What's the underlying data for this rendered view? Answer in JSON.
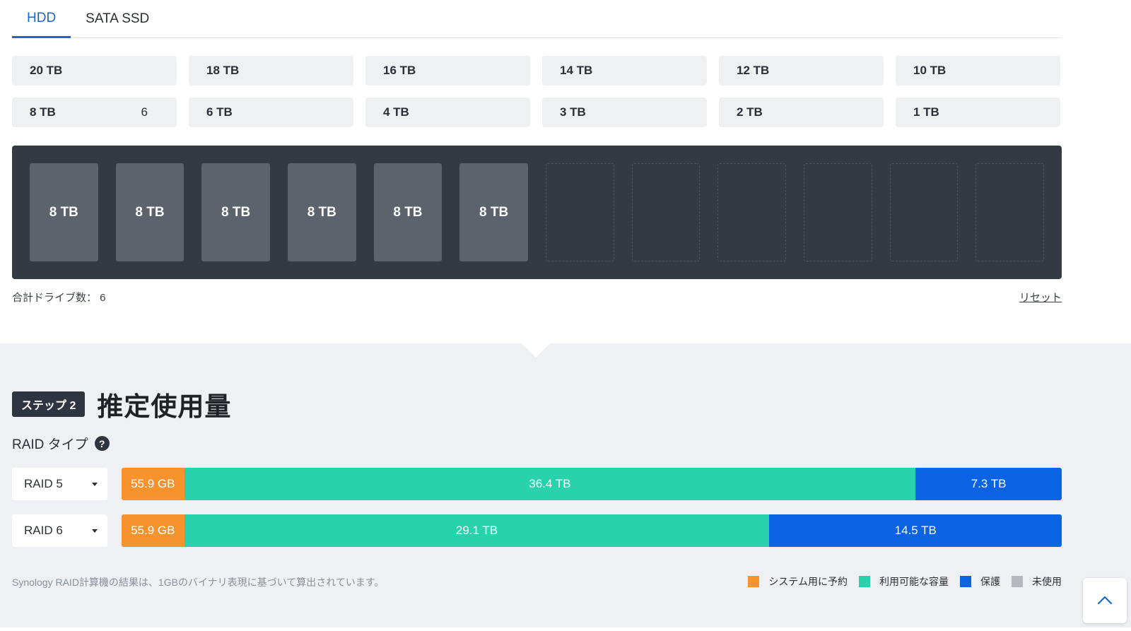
{
  "tabs": [
    {
      "label": "HDD",
      "active": true
    },
    {
      "label": "SATA SSD",
      "active": false
    }
  ],
  "sizes": [
    {
      "label": "20 TB",
      "count": ""
    },
    {
      "label": "18 TB",
      "count": ""
    },
    {
      "label": "16 TB",
      "count": ""
    },
    {
      "label": "14 TB",
      "count": ""
    },
    {
      "label": "12 TB",
      "count": ""
    },
    {
      "label": "10 TB",
      "count": ""
    },
    {
      "label": "8 TB",
      "count": "6"
    },
    {
      "label": "6 TB",
      "count": ""
    },
    {
      "label": "4 TB",
      "count": ""
    },
    {
      "label": "3 TB",
      "count": ""
    },
    {
      "label": "2 TB",
      "count": ""
    },
    {
      "label": "1 TB",
      "count": ""
    }
  ],
  "bay": {
    "slots": [
      "8 TB",
      "8 TB",
      "8 TB",
      "8 TB",
      "8 TB",
      "8 TB",
      "",
      "",
      "",
      "",
      "",
      ""
    ]
  },
  "total_drives": "合計ドライブ数：  6",
  "reset_label": "リセット",
  "step": {
    "badge": "ステップ 2",
    "title": "推定使用量"
  },
  "raid_type_label": "RAID タイプ",
  "help_icon": "?",
  "raid_rows": [
    {
      "select": "RAID 5",
      "segments": [
        {
          "kind": "reserved",
          "label": "55.9 GB",
          "fraction": 0.0666
        },
        {
          "kind": "available",
          "label": "36.4 TB",
          "fraction": 0.7779
        },
        {
          "kind": "protect",
          "label": "7.3 TB",
          "fraction": 0.1555
        }
      ]
    },
    {
      "select": "RAID 6",
      "segments": [
        {
          "kind": "reserved",
          "label": "55.9 GB",
          "fraction": 0.0666
        },
        {
          "kind": "available",
          "label": "29.1 TB",
          "fraction": 0.6225
        },
        {
          "kind": "protect",
          "label": "14.5 TB",
          "fraction": 0.3109
        }
      ]
    }
  ],
  "footnote": "Synology RAID計算機の結果は、1GBのバイナリ表現に基づいて算出されています。",
  "legend": [
    {
      "label": "システム用に予約",
      "color": "#f7922d"
    },
    {
      "label": "利用可能な容量",
      "color": "#28d2ad"
    },
    {
      "label": "保護",
      "color": "#0a63e2"
    },
    {
      "label": "未使用",
      "color": "#b5b9bf"
    }
  ],
  "colors": {
    "accent": "#1a67d2",
    "bay_bg": "#343a44"
  },
  "icons": {
    "scroll_top": "chevron-up-icon"
  }
}
